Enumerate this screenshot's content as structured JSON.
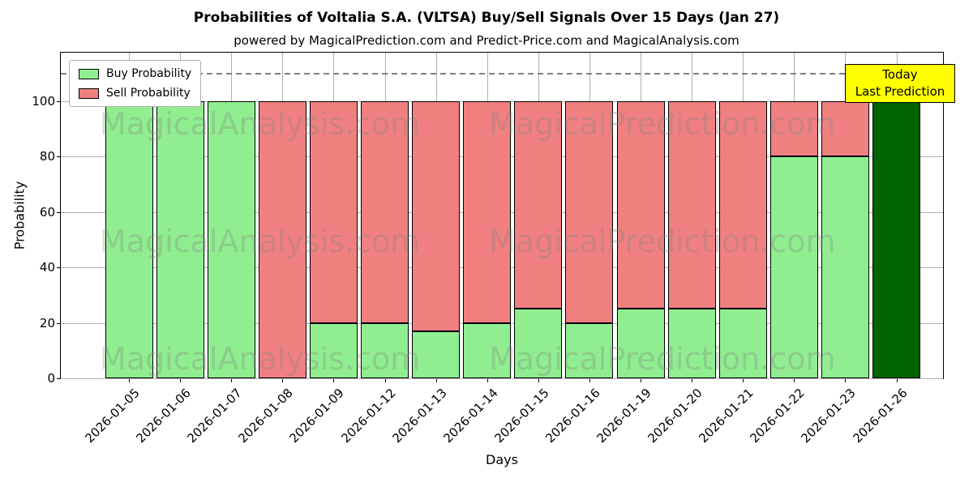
{
  "chart_data": {
    "type": "bar",
    "stacked": true,
    "title": "Probabilities of Voltalia S.A. (VLTSA) Buy/Sell Signals Over 15 Days (Jan 27)",
    "subtitle": "powered by MagicalPrediction.com and Predict-Price.com and MagicalAnalysis.com",
    "xlabel": "Days",
    "ylabel": "Probability",
    "ylim": [
      0,
      117.5
    ],
    "yticks": [
      0,
      20,
      40,
      60,
      80,
      100
    ],
    "grid": true,
    "legend_position": "upper left",
    "dashed_line_y": 110,
    "categories": [
      "2026-01-05",
      "2026-01-06",
      "2026-01-07",
      "2026-01-08",
      "2026-01-09",
      "2026-01-12",
      "2026-01-13",
      "2026-01-14",
      "2026-01-15",
      "2026-01-16",
      "2026-01-19",
      "2026-01-20",
      "2026-01-21",
      "2026-01-22",
      "2026-01-23",
      "2026-01-26"
    ],
    "series": [
      {
        "name": "Buy Probability",
        "color": "#90EE90",
        "values": [
          100,
          100,
          100,
          0,
          20,
          20,
          17,
          20,
          25,
          20,
          25,
          25,
          25,
          80,
          80,
          100
        ]
      },
      {
        "name": "Sell Probability",
        "color": "#F08080",
        "values": [
          0,
          0,
          0,
          100,
          80,
          80,
          83,
          80,
          75,
          80,
          75,
          75,
          75,
          20,
          20,
          0
        ]
      }
    ],
    "today_bar": {
      "category": "2026-01-26",
      "index": 15,
      "color": "#006400"
    },
    "annotation": {
      "line1": "Today",
      "line2": "Last Prediction",
      "bg_color": "#FFFF00"
    },
    "watermarks": [
      "MagicalAnalysis.com",
      "MagicalPrediction.com"
    ],
    "colors": {
      "bar_edge": "#000000",
      "grid": "#b0b0b0",
      "dashed_line": "#808080"
    }
  }
}
